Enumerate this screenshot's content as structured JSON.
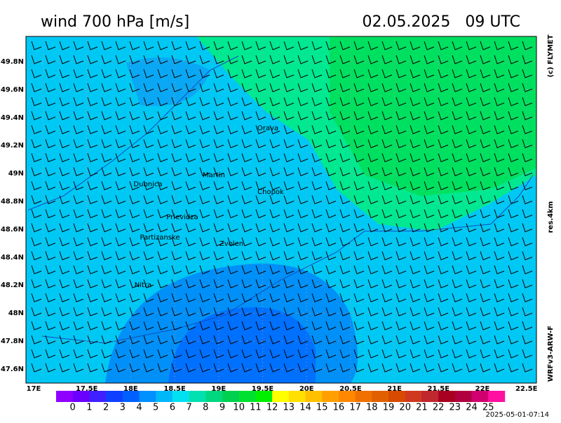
{
  "header": {
    "title": "wind 700 hPa [m/s]",
    "date": "02.05.2025   09 UTC"
  },
  "side": {
    "copyright": "(c) FLYMET",
    "resolution": "res.4km",
    "model": "WRFv3-ARW-F"
  },
  "footer": {
    "timestamp": "2025-05-01-07:14"
  },
  "map": {
    "lat_labels": [
      "49.8N",
      "49.6N",
      "49.4N",
      "49.2N",
      "49N",
      "48.8N",
      "48.6N",
      "48.4N",
      "48.2N",
      "48N",
      "47.8N",
      "47.6N"
    ],
    "lon_labels": [
      "17E",
      "17.5E",
      "18E",
      "18.5E",
      "19E",
      "19.5E",
      "20E",
      "20.5E",
      "21E",
      "21.5E",
      "22E",
      "22.5E"
    ],
    "cities": [
      "Orava",
      "Martin",
      "Dubnica",
      "Chopok",
      "Prievidza",
      "Partizanske",
      "Zvolen",
      "Nitra"
    ]
  },
  "colorbar": {
    "ticks": [
      0,
      1,
      2,
      3,
      4,
      5,
      6,
      7,
      8,
      9,
      10,
      11,
      12,
      13,
      14,
      15,
      16,
      17,
      18,
      19,
      20,
      21,
      22,
      23,
      24,
      25
    ],
    "colors": [
      "#9000ff",
      "#6c00ff",
      "#4020ff",
      "#1040ff",
      "#0060ff",
      "#0090ff",
      "#00b8f8",
      "#00e0f0",
      "#00e0b0",
      "#00d880",
      "#00d050",
      "#00e030",
      "#00f000",
      "#ffff00",
      "#ffe000",
      "#ffc000",
      "#ffa000",
      "#ff8800",
      "#f07000",
      "#e06000",
      "#d84a00",
      "#d03820",
      "#c02830",
      "#a80020",
      "#b00040",
      "#d00070",
      "#ff10a0"
    ]
  }
}
